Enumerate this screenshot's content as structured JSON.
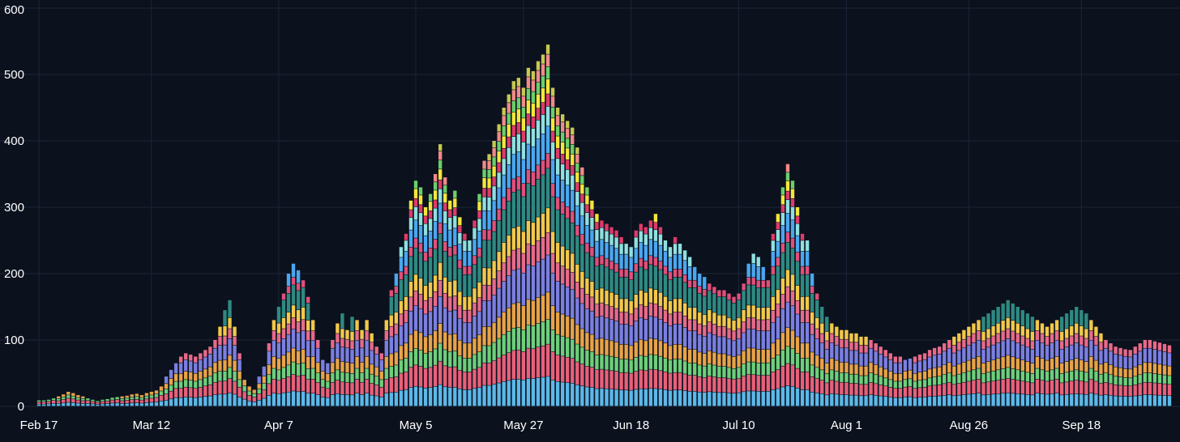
{
  "chart_data": {
    "type": "bar",
    "stacked": true,
    "title": "",
    "xlabel": "",
    "ylabel": "",
    "ylim": [
      0,
      600
    ],
    "grid": true,
    "legend": "none",
    "y_ticks": [
      "0",
      "100",
      "200",
      "300",
      "400",
      "500",
      "600"
    ],
    "x_tick_labels": [
      "Feb 17",
      "Mar 12",
      "Apr 7",
      "May 5",
      "May 27",
      "Jun 18",
      "Jul 10",
      "Aug 1",
      "Aug 26",
      "Sep 18"
    ],
    "x_tick_positions": [
      0,
      23,
      49,
      77,
      99,
      121,
      143,
      165,
      190,
      213
    ],
    "totals": [
      9,
      9,
      10,
      12,
      15,
      18,
      22,
      20,
      17,
      15,
      12,
      10,
      8,
      10,
      11,
      13,
      14,
      15,
      16,
      18,
      19,
      17,
      20,
      22,
      24,
      30,
      45,
      55,
      65,
      75,
      80,
      78,
      75,
      80,
      85,
      90,
      100,
      120,
      145,
      160,
      120,
      80,
      40,
      30,
      25,
      45,
      60,
      95,
      130,
      150,
      170,
      200,
      215,
      205,
      190,
      165,
      130,
      100,
      70,
      65,
      100,
      125,
      140,
      115,
      135,
      130,
      115,
      130,
      110,
      90,
      80,
      130,
      175,
      200,
      240,
      260,
      310,
      340,
      330,
      300,
      320,
      350,
      395,
      345,
      310,
      325,
      285,
      260,
      250,
      280,
      320,
      370,
      380,
      400,
      425,
      450,
      470,
      490,
      495,
      480,
      510,
      505,
      520,
      530,
      545,
      480,
      450,
      440,
      430,
      420,
      390,
      360,
      330,
      310,
      290,
      280,
      275,
      270,
      265,
      255,
      245,
      240,
      265,
      275,
      270,
      280,
      290,
      270,
      250,
      240,
      255,
      245,
      235,
      225,
      210,
      200,
      195,
      185,
      180,
      175,
      175,
      170,
      165,
      170,
      185,
      215,
      230,
      225,
      210,
      190,
      260,
      290,
      330,
      365,
      340,
      300,
      260,
      250,
      200,
      170,
      150,
      135,
      125,
      120,
      115,
      115,
      110,
      110,
      105,
      105,
      100,
      95,
      90,
      85,
      80,
      75,
      75,
      70,
      72,
      75,
      78,
      80,
      85,
      88,
      90,
      95,
      100,
      105,
      110,
      115,
      120,
      125,
      130,
      135,
      140,
      145,
      150,
      155,
      160,
      155,
      150,
      145,
      140,
      135,
      130,
      125,
      120,
      125,
      130,
      135,
      140,
      145,
      150,
      145,
      140,
      130,
      120,
      110,
      100,
      95,
      90,
      88,
      86,
      85,
      90,
      95,
      100,
      100,
      98,
      96,
      94,
      92
    ]
  },
  "colors": {
    "background": "#0b111d",
    "grid": "#1c2538",
    "text": "#ffffff",
    "palette": [
      "#5cb8e8",
      "#e8607a",
      "#6ecf7a",
      "#e8a347",
      "#7b7fe0",
      "#e86a8a",
      "#f2c84b",
      "#2e8a82",
      "#e0507a",
      "#4aa7f0",
      "#8fe0e0",
      "#e03a6a",
      "#f5e63a",
      "#6ad06a",
      "#f28a8a",
      "#c8c850"
    ]
  }
}
